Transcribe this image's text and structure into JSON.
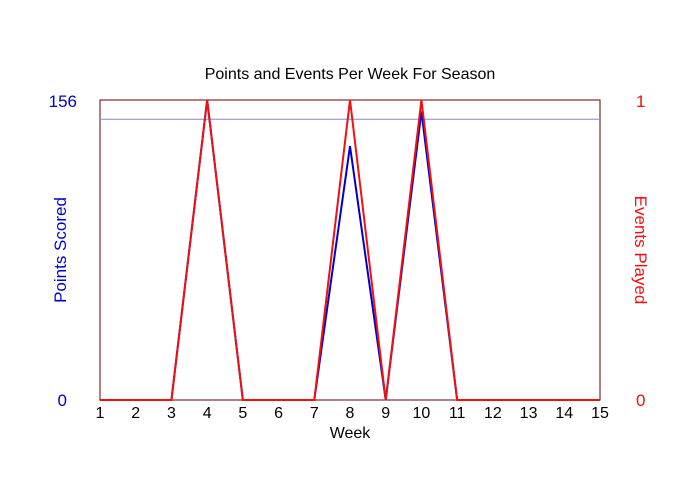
{
  "chart_data": {
    "type": "line",
    "title": "Points and Events Per Week For Season",
    "xlabel": "Week",
    "ylabel_left": "Points Scored",
    "ylabel_right": "Events Played",
    "x": [
      1,
      2,
      3,
      4,
      5,
      6,
      7,
      8,
      9,
      10,
      11,
      12,
      13,
      14,
      15
    ],
    "xlim": [
      1,
      15
    ],
    "ylim_left": [
      0,
      156
    ],
    "ylim_right": [
      0,
      1
    ],
    "yticks_left": [
      "0",
      "156"
    ],
    "yticks_right": [
      "0",
      "1"
    ],
    "reference_line_left": 146,
    "series": [
      {
        "axis": "left",
        "color": "#0000cc",
        "values": [
          0,
          0,
          0,
          156,
          0,
          0,
          0,
          132,
          0,
          150,
          0,
          0,
          0,
          0,
          0
        ]
      },
      {
        "axis": "right",
        "color": "#ee1111",
        "values": [
          0,
          0,
          0,
          1,
          0,
          0,
          0,
          1,
          0,
          1,
          0,
          0,
          0,
          0,
          0
        ]
      }
    ],
    "colors": {
      "left_axis": "#0000cc",
      "right_axis": "#ee1111",
      "title": "#000000",
      "plot_border": "#660000",
      "reference_line": "#8888cc"
    },
    "grid": false,
    "legend": "none"
  }
}
